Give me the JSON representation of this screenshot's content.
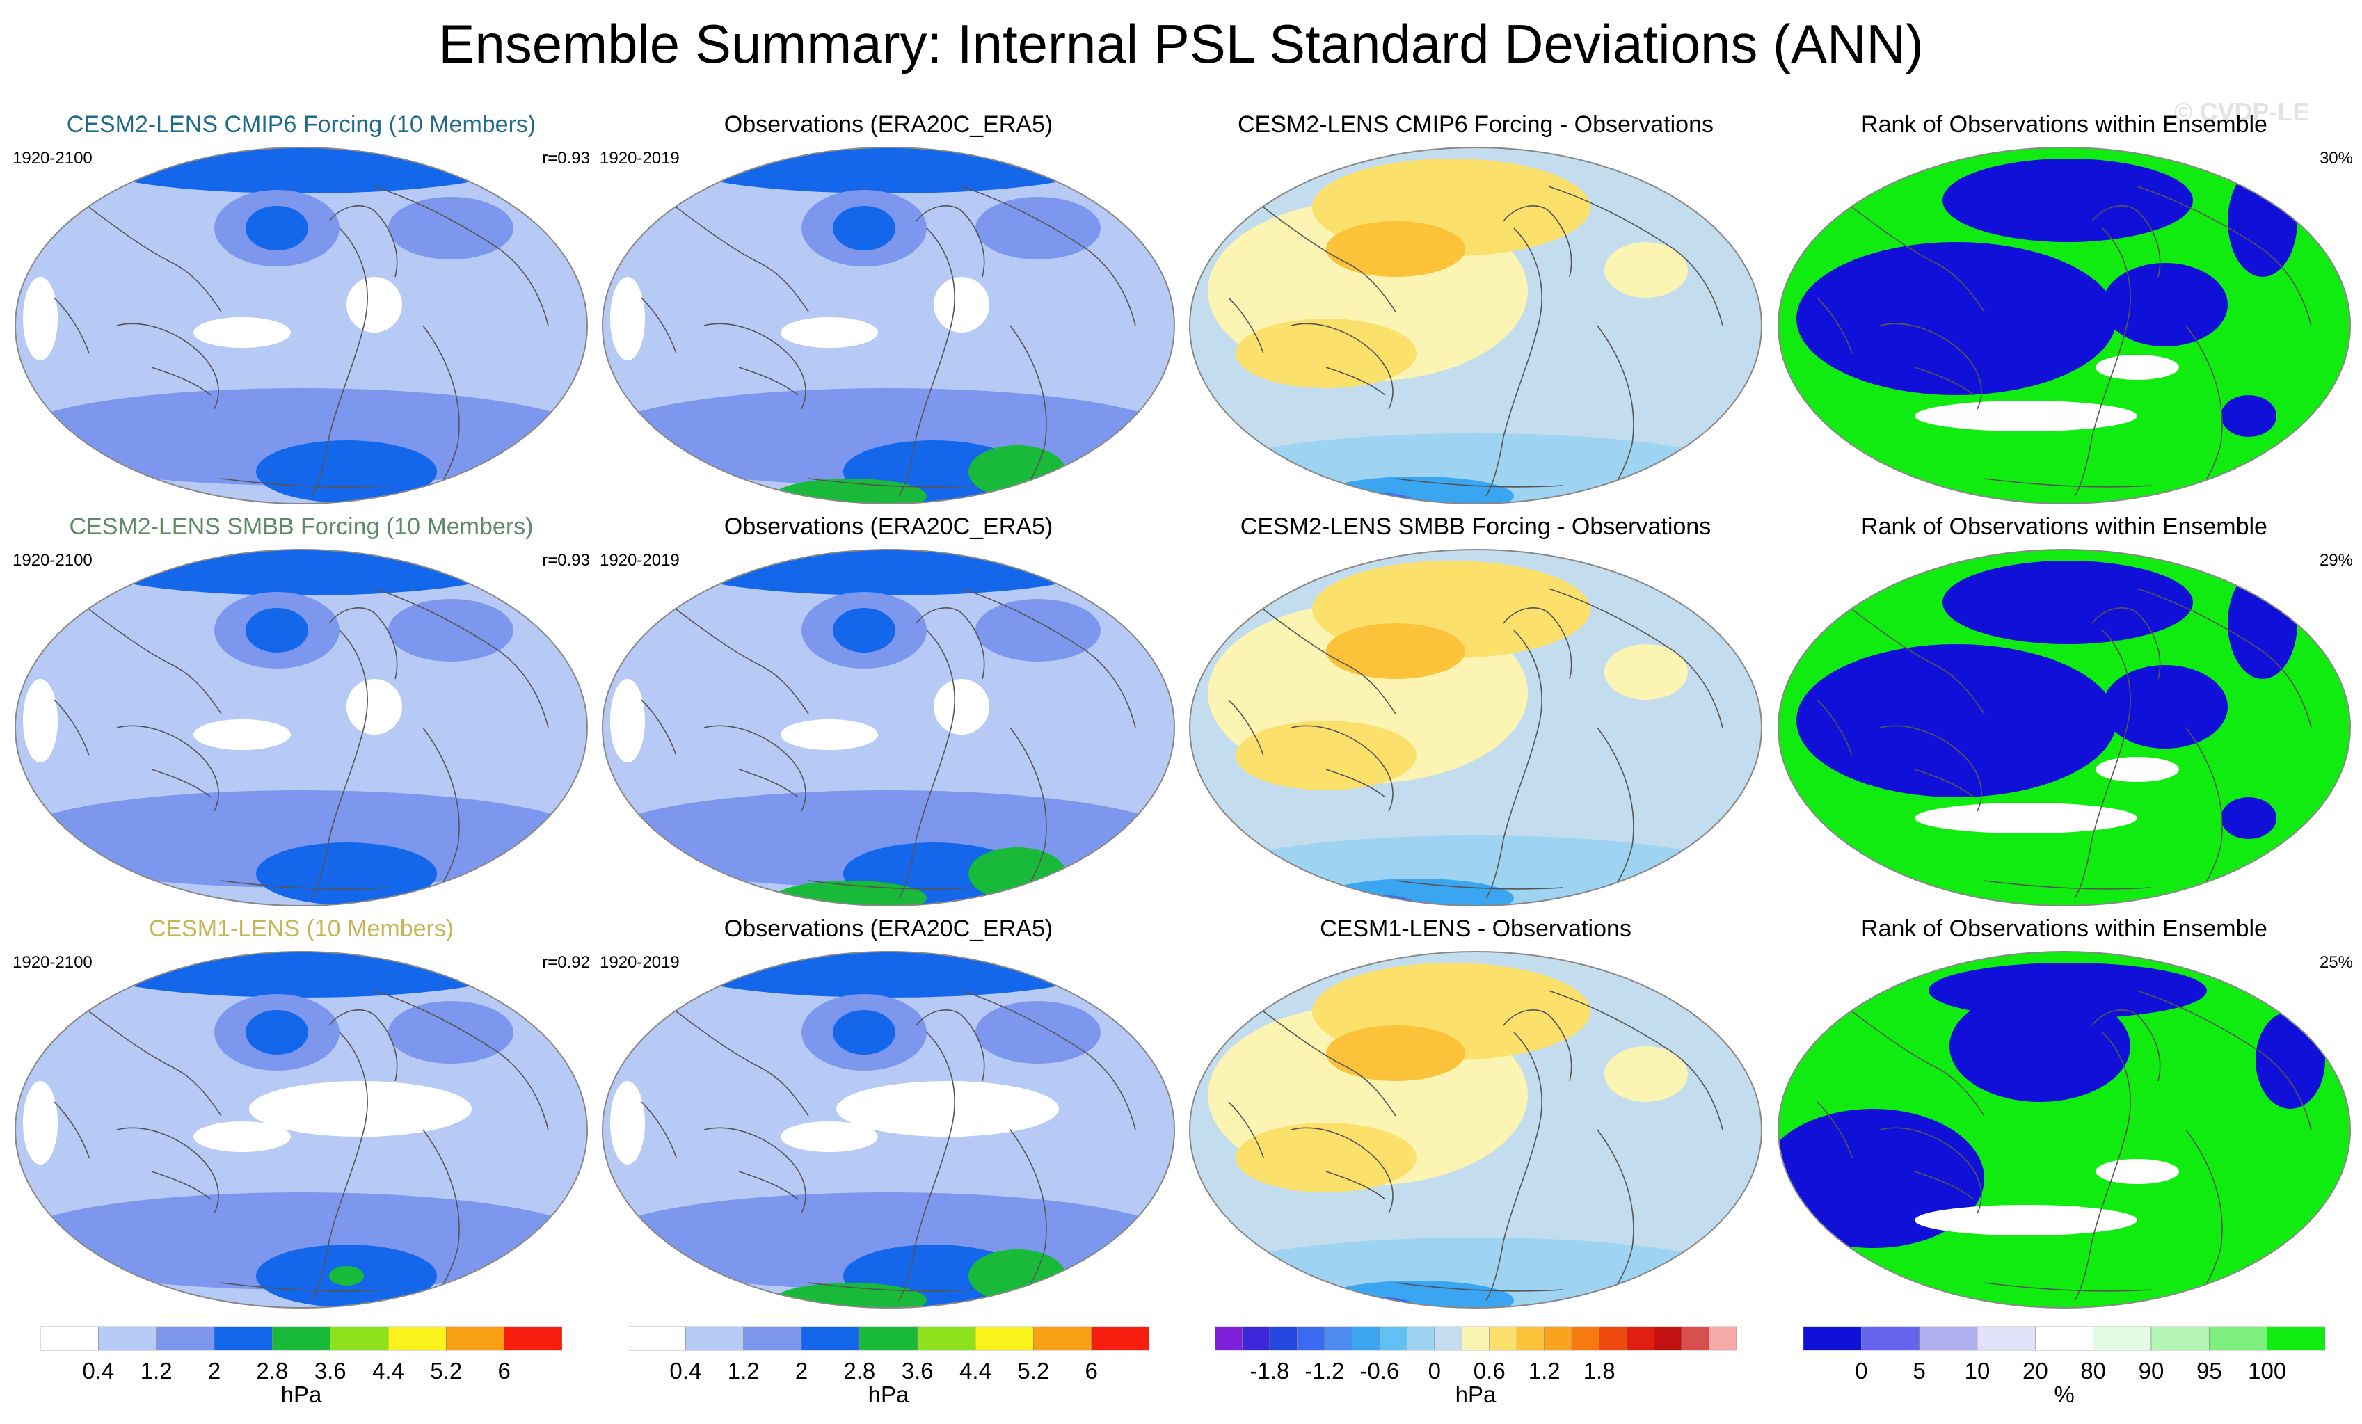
{
  "title": "Ensemble Summary: Internal PSL Standard Deviations (ANN)",
  "watermark": "© CVDP-LE",
  "colors": {
    "title_cmip6": "#1f6b8a",
    "title_smbb": "#5e8a68",
    "title_cesm1": "#c9b455",
    "std_levels": [
      "#ffffff",
      "#b7c9f5",
      "#7d97ee",
      "#1467ea",
      "#19b93a",
      "#8ee21c",
      "#f9f21b",
      "#f9a014",
      "#f91f10"
    ],
    "diff_levels": [
      "#7f1fd9",
      "#3d26d9",
      "#2447e0",
      "#3a6bf0",
      "#4f8cf2",
      "#3aa5f0",
      "#62c0f2",
      "#9fd3f2",
      "#c3dcee",
      "#fbf4b2",
      "#fce06c",
      "#fbc23a",
      "#f9a41c",
      "#f67a10",
      "#ee4a10",
      "#e01f10",
      "#c31010",
      "#d94f4f",
      "#f5aaaa"
    ],
    "rank_levels": [
      "#1010d9",
      "#6464ee",
      "#b0b0f0",
      "#e2e2fa",
      "#ffffff",
      "#e3fbe3",
      "#b4f4b4",
      "#7ef07e",
      "#10ec10"
    ]
  },
  "rows": [
    {
      "ensemble": {
        "title": "CESM2-LENS CMIP6 Forcing (10 Members)",
        "years": "1920-2100",
        "corr": "r=0.93",
        "title_color": "#1f6b8a"
      },
      "observations": {
        "title": "Observations (ERA20C_ERA5)",
        "years": "1920-2019"
      },
      "difference": {
        "title": "CESM2-LENS CMIP6 Forcing - Observations"
      },
      "rank": {
        "title": "Rank of Observations within Ensemble",
        "pct": "30%"
      }
    },
    {
      "ensemble": {
        "title": "CESM2-LENS SMBB Forcing (10 Members)",
        "years": "1920-2100",
        "corr": "r=0.93",
        "title_color": "#5e8a68"
      },
      "observations": {
        "title": "Observations (ERA20C_ERA5)",
        "years": "1920-2019"
      },
      "difference": {
        "title": "CESM2-LENS SMBB Forcing - Observations"
      },
      "rank": {
        "title": "Rank of Observations within Ensemble",
        "pct": "29%"
      }
    },
    {
      "ensemble": {
        "title": "CESM1-LENS (10 Members)",
        "years": "1920-2100",
        "corr": "r=0.92",
        "title_color": "#c9b455"
      },
      "observations": {
        "title": "Observations (ERA20C_ERA5)",
        "years": "1920-2019"
      },
      "difference": {
        "title": "CESM1-LENS - Observations"
      },
      "rank": {
        "title": "Rank of Observations within Ensemble",
        "pct": "25%"
      }
    }
  ],
  "colorbars": [
    {
      "unit": "hPa",
      "labels": [
        "0.4",
        "1.2",
        "2",
        "2.8",
        "3.6",
        "4.4",
        "5.2",
        "6"
      ]
    },
    {
      "unit": "hPa",
      "labels": [
        "0.4",
        "1.2",
        "2",
        "2.8",
        "3.6",
        "4.4",
        "5.2",
        "6"
      ]
    },
    {
      "unit": "hPa",
      "labels": [
        "-1.8",
        "-1.2",
        "-0.6",
        "0",
        "0.6",
        "1.2",
        "1.8"
      ]
    },
    {
      "unit": "%",
      "labels": [
        "0",
        "5",
        "10",
        "20",
        "80",
        "90",
        "95",
        "100"
      ]
    }
  ],
  "chart_data": {
    "type": "heatmap",
    "title": "Ensemble Summary: Internal PSL Standard Deviations (ANN)",
    "grid": "4 columns x 3 rows of global Robinson-like maps",
    "columns": [
      "ensemble mean internal PSL std dev (hPa)",
      "observed PSL std dev (hPa)",
      "ensemble minus observations (hPa)",
      "rank of observations within ensemble (%)"
    ],
    "std_contour_levels": [
      0.4,
      1.2,
      2,
      2.8,
      3.6,
      4.4,
      5.2,
      6
    ],
    "diff_contour_levels": [
      -1.8,
      -1.2,
      -0.6,
      0,
      0.6,
      1.2,
      1.8
    ],
    "rank_levels": [
      0,
      5,
      10,
      20,
      80,
      90,
      95,
      100
    ],
    "pattern_correlations": [
      0.93,
      0.93,
      0.92
    ],
    "rank_percent_outside": [
      30,
      29,
      25
    ]
  }
}
